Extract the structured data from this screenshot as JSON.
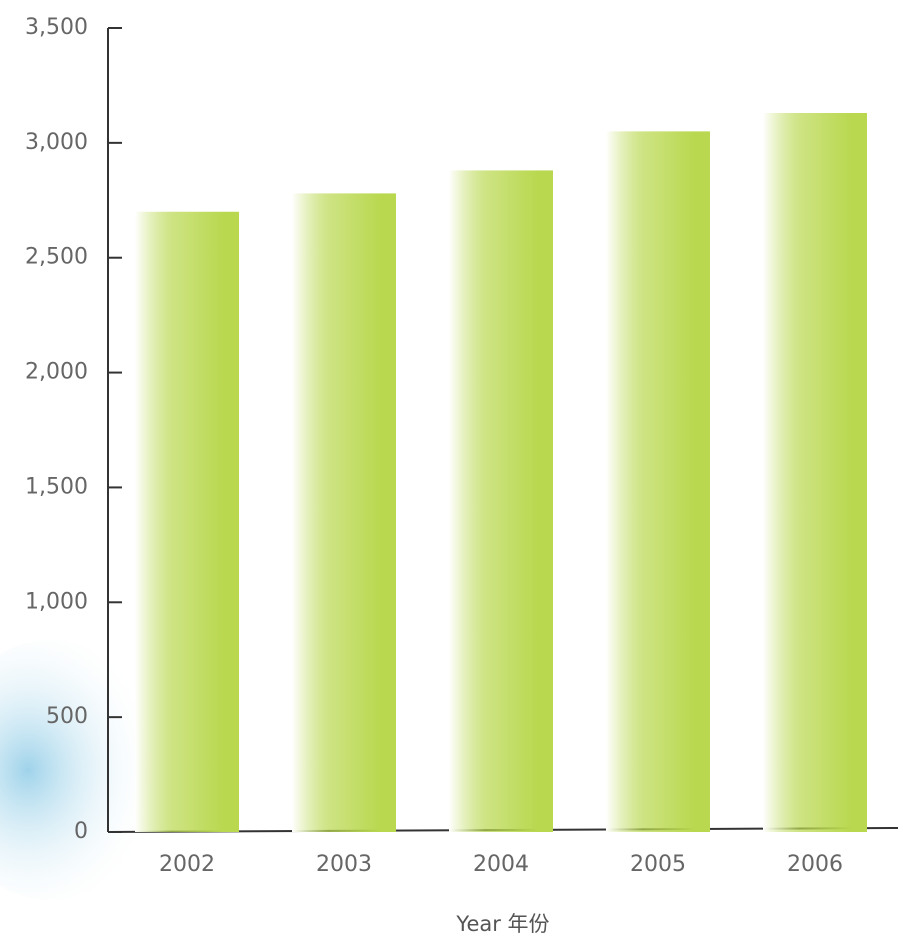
{
  "chart_data": {
    "type": "bar",
    "x_label": "Year 年份",
    "categories": [
      "2002",
      "2003",
      "2004",
      "2005",
      "2006"
    ],
    "values": [
      2700,
      2780,
      2880,
      3050,
      3130
    ],
    "color": "#b9d84f",
    "ylim": [
      0,
      3500
    ],
    "yticks": [
      0,
      500,
      {
        "value": 1000,
        "label": "1,000"
      },
      {
        "value": 1500,
        "label": "1,500"
      },
      {
        "value": 2000,
        "label": "2,000"
      },
      {
        "value": 2500,
        "label": "2,500"
      },
      {
        "value": 3000,
        "label": "3,000"
      },
      {
        "value": 3500,
        "label": "3,500"
      }
    ]
  }
}
